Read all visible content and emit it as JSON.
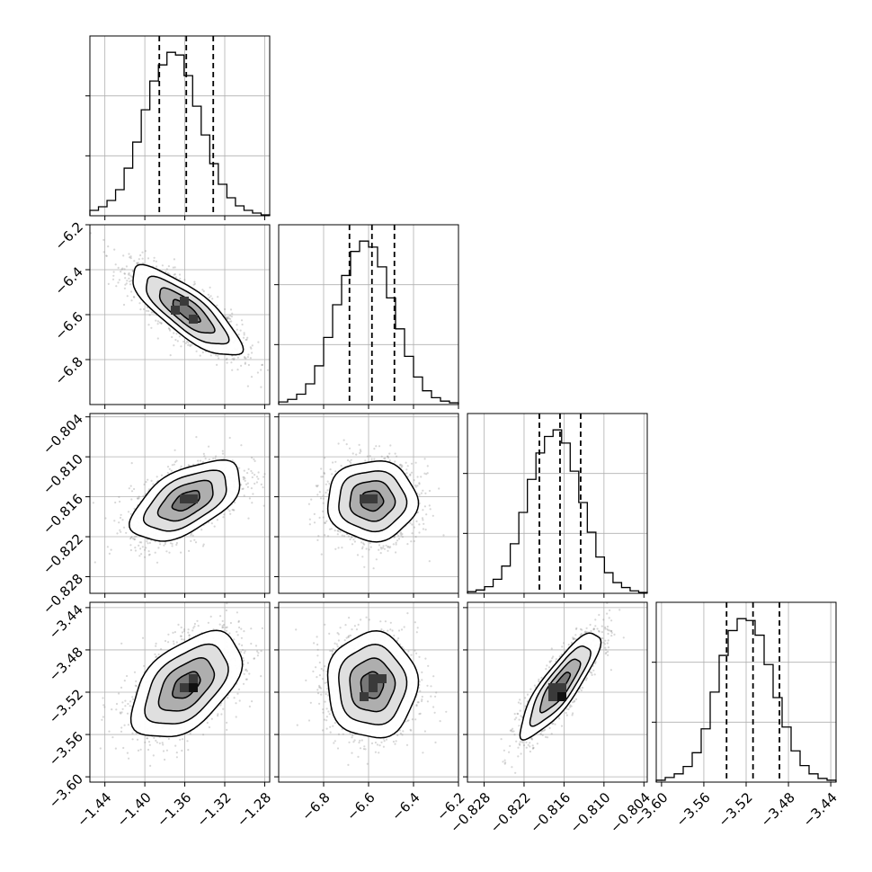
{
  "chart_data": {
    "type": "corner",
    "parameters": [
      {
        "index": 0,
        "range": [
          -1.455,
          -1.275
        ],
        "ticks": [
          -1.44,
          -1.4,
          -1.36,
          -1.32,
          -1.28
        ],
        "tick_labels": [
          "−1.44",
          "−1.40",
          "−1.36",
          "−1.32",
          "−1.28"
        ],
        "quantiles": [
          -1.3855,
          -1.3585,
          -1.3315
        ],
        "mean": -1.3585,
        "std": 0.0275,
        "histogram": {
          "bins": 21,
          "counts": [
            6,
            10,
            17,
            29,
            53,
            82,
            118,
            150,
            168,
            182,
            179,
            156,
            122,
            90,
            58,
            35,
            20,
            11,
            6,
            3,
            1
          ]
        }
      },
      {
        "index": 1,
        "range": [
          -7.0,
          -6.2
        ],
        "ticks": [
          -6.8,
          -6.6,
          -6.4,
          -6.2
        ],
        "tick_labels": [
          "−6.8",
          "−6.6",
          "−6.4",
          "−6.2"
        ],
        "quantiles": [
          -6.685,
          -6.585,
          -6.485
        ],
        "mean": -6.585,
        "std": 0.1,
        "histogram": {
          "bins": 20,
          "counts": [
            3,
            6,
            12,
            24,
            45,
            78,
            116,
            150,
            178,
            190,
            183,
            160,
            124,
            88,
            56,
            32,
            16,
            8,
            4,
            2
          ]
        }
      },
      {
        "index": 2,
        "range": [
          -0.8305,
          -0.8035
        ],
        "ticks": [
          -0.828,
          -0.822,
          -0.816,
          -0.81,
          -0.804
        ],
        "tick_labels": [
          "−0.828",
          "−0.822",
          "−0.816",
          "−0.810",
          "−0.804"
        ],
        "quantiles": [
          -0.8197,
          -0.8166,
          -0.8135
        ],
        "mean": -0.8166,
        "std": 0.003,
        "histogram": {
          "bins": 21,
          "counts": [
            2,
            4,
            8,
            17,
            33,
            60,
            98,
            138,
            170,
            190,
            198,
            182,
            148,
            110,
            74,
            44,
            25,
            13,
            7,
            3,
            1
          ]
        }
      },
      {
        "index": 3,
        "range": [
          -3.605,
          -3.435
        ],
        "ticks": [
          -3.6,
          -3.56,
          -3.52,
          -3.48,
          -3.44
        ],
        "tick_labels": [
          "−3.60",
          "−3.56",
          "−3.52",
          "−3.48",
          "−3.44"
        ],
        "quantiles": [
          -3.5385,
          -3.5135,
          -3.4885
        ],
        "mean": -3.5135,
        "std": 0.025,
        "histogram": {
          "bins": 20,
          "counts": [
            2,
            5,
            9,
            17,
            32,
            58,
            98,
            138,
            165,
            178,
            176,
            160,
            128,
            92,
            60,
            34,
            18,
            9,
            4,
            2
          ]
        }
      }
    ],
    "correlations": {
      "1-0": -0.8,
      "2-0": 0.55,
      "2-1": 0.0,
      "3-0": 0.5,
      "3-1": 0.0,
      "3-2": 0.85
    },
    "contour_levels_sigma": [
      0.5,
      1.0,
      1.5,
      2.0
    ],
    "colors": {
      "contour": "#000000",
      "density": "#000000",
      "points": "#8c8c8c",
      "grid": "#b0b0b0"
    },
    "grid": true,
    "title": "",
    "xlabel": "",
    "ylabel": ""
  }
}
